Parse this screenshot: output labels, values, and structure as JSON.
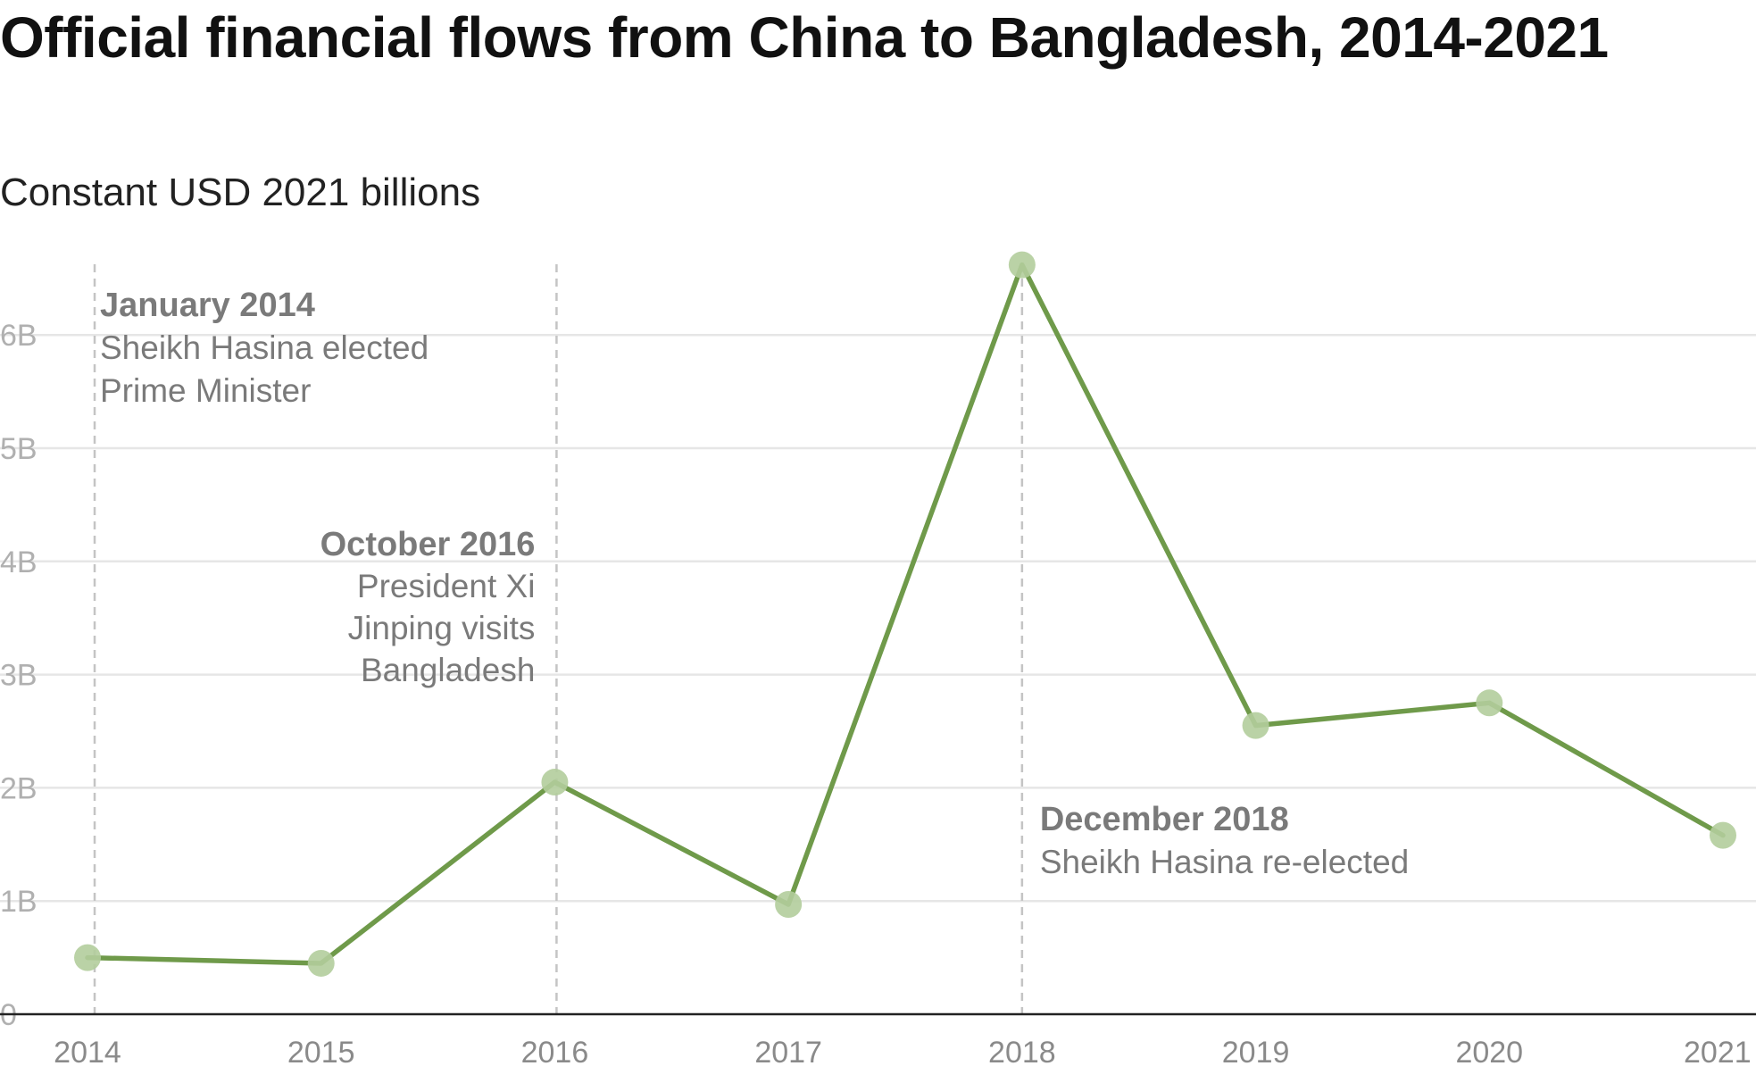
{
  "chart_data": {
    "type": "line",
    "title": "Official financial flows from China to Bangladesh, 2014-2021",
    "subtitle": "Constant USD 2021 billions",
    "categories": [
      "2014",
      "2015",
      "2016",
      "2017",
      "2018",
      "2019",
      "2020",
      "2021"
    ],
    "values": [
      0.5,
      0.45,
      2.05,
      0.97,
      6.62,
      2.55,
      2.75,
      1.58
    ],
    "ylim": [
      0,
      6.62
    ],
    "yticks": [
      {
        "value": 0,
        "label": "0"
      },
      {
        "value": 1,
        "label": "1B"
      },
      {
        "value": 2,
        "label": "2B"
      },
      {
        "value": 3,
        "label": "3B"
      },
      {
        "value": 4,
        "label": "4B"
      },
      {
        "value": 5,
        "label": "5B"
      },
      {
        "value": 6,
        "label": "6B"
      }
    ],
    "grid": true,
    "colors": {
      "line": "#6f9a4a",
      "marker": "#b3cd9c"
    },
    "annotations": [
      {
        "x": 2014.0,
        "title": "January 2014",
        "lines": [
          "Sheikh Hasina elected",
          "Prime Minister"
        ],
        "align": "left"
      },
      {
        "x": 2016.0,
        "title": "October 2016",
        "lines": [
          "President Xi",
          "Jinping visits",
          "Bangladesh"
        ],
        "align": "right"
      },
      {
        "x": 2018.0,
        "title": "December 2018",
        "lines": [
          "Sheikh Hasina re-elected"
        ],
        "align": "left"
      }
    ]
  }
}
